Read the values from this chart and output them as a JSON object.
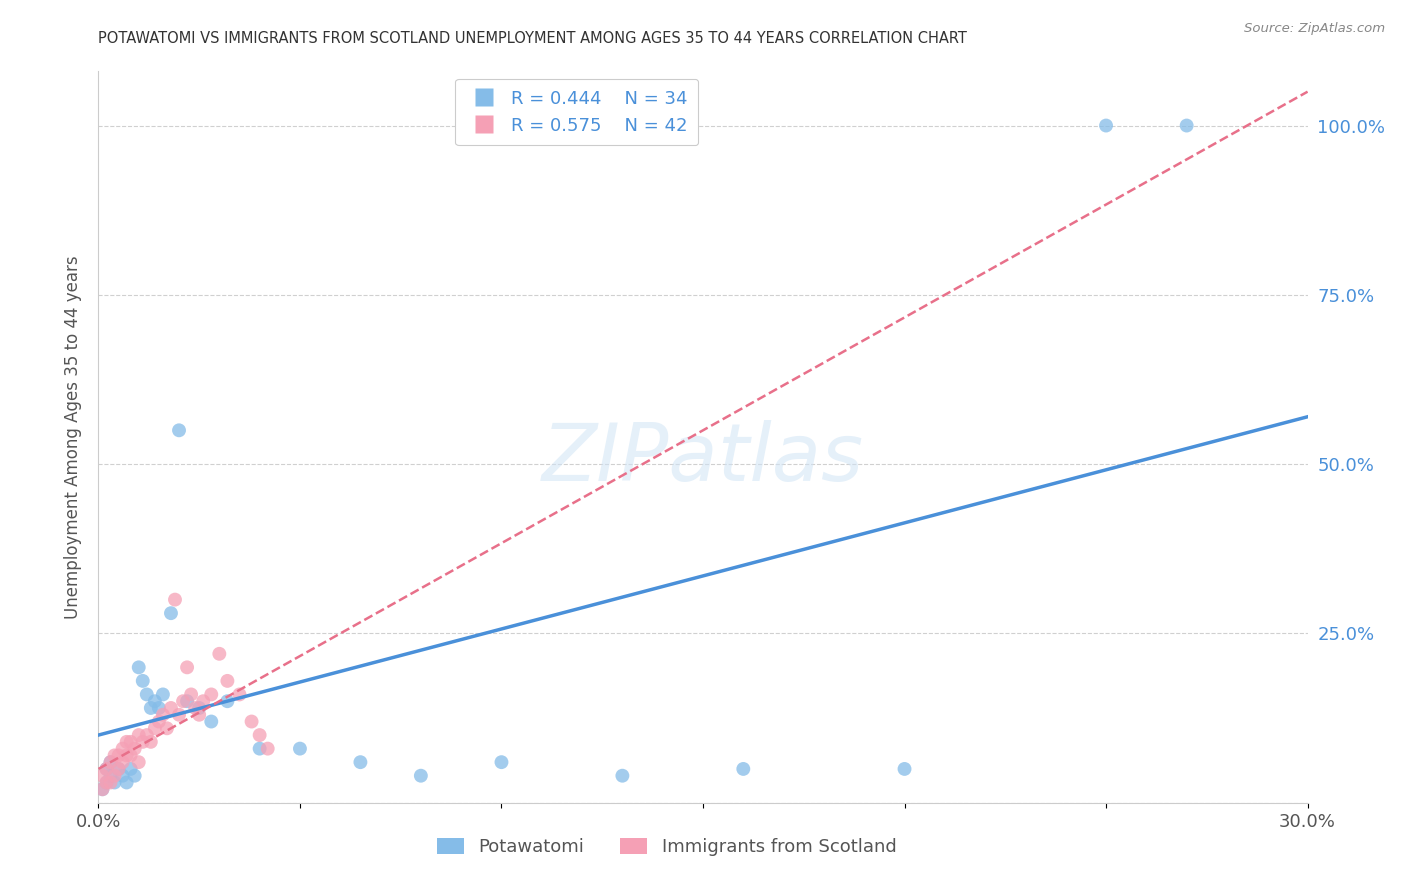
{
  "title": "POTAWATOMI VS IMMIGRANTS FROM SCOTLAND UNEMPLOYMENT AMONG AGES 35 TO 44 YEARS CORRELATION CHART",
  "source": "Source: ZipAtlas.com",
  "ylabel": "Unemployment Among Ages 35 to 44 years",
  "xlim": [
    0.0,
    0.3
  ],
  "ylim": [
    0.0,
    1.08
  ],
  "blue_color": "#85bce8",
  "pink_color": "#f5a0b5",
  "blue_line_color": "#4a90d9",
  "pink_line_color": "#e8708a",
  "legend_blue_r": "R = 0.444",
  "legend_blue_n": "N = 34",
  "legend_pink_r": "R = 0.575",
  "legend_pink_n": "N = 42",
  "watermark_text": "ZIPatlas",
  "blue_line_x0": 0.0,
  "blue_line_y0": 0.1,
  "blue_line_x1": 0.3,
  "blue_line_y1": 0.57,
  "pink_line_x0": 0.0,
  "pink_line_y0": 0.05,
  "pink_line_x1": 0.3,
  "pink_line_y1": 1.05,
  "potawatomi_x": [
    0.001,
    0.002,
    0.002,
    0.003,
    0.003,
    0.004,
    0.005,
    0.006,
    0.007,
    0.008,
    0.009,
    0.01,
    0.011,
    0.012,
    0.013,
    0.014,
    0.015,
    0.016,
    0.018,
    0.02,
    0.022,
    0.025,
    0.028,
    0.032,
    0.04,
    0.05,
    0.065,
    0.08,
    0.1,
    0.13,
    0.16,
    0.2,
    0.25,
    0.27
  ],
  "potawatomi_y": [
    0.02,
    0.03,
    0.05,
    0.04,
    0.06,
    0.03,
    0.05,
    0.04,
    0.03,
    0.05,
    0.04,
    0.2,
    0.18,
    0.16,
    0.14,
    0.15,
    0.14,
    0.16,
    0.28,
    0.55,
    0.15,
    0.14,
    0.12,
    0.15,
    0.08,
    0.08,
    0.06,
    0.04,
    0.06,
    0.04,
    0.05,
    0.05,
    1.0,
    1.0
  ],
  "scotland_x": [
    0.001,
    0.001,
    0.002,
    0.002,
    0.003,
    0.003,
    0.004,
    0.004,
    0.005,
    0.005,
    0.006,
    0.006,
    0.007,
    0.007,
    0.008,
    0.008,
    0.009,
    0.01,
    0.01,
    0.011,
    0.012,
    0.013,
    0.014,
    0.015,
    0.016,
    0.017,
    0.018,
    0.019,
    0.02,
    0.021,
    0.022,
    0.023,
    0.024,
    0.025,
    0.026,
    0.028,
    0.03,
    0.032,
    0.035,
    0.038,
    0.04,
    0.042
  ],
  "scotland_y": [
    0.02,
    0.04,
    0.03,
    0.05,
    0.03,
    0.06,
    0.04,
    0.07,
    0.05,
    0.07,
    0.06,
    0.08,
    0.07,
    0.09,
    0.07,
    0.09,
    0.08,
    0.06,
    0.1,
    0.09,
    0.1,
    0.09,
    0.11,
    0.12,
    0.13,
    0.11,
    0.14,
    0.3,
    0.13,
    0.15,
    0.2,
    0.16,
    0.14,
    0.13,
    0.15,
    0.16,
    0.22,
    0.18,
    0.16,
    0.12,
    0.1,
    0.08
  ]
}
